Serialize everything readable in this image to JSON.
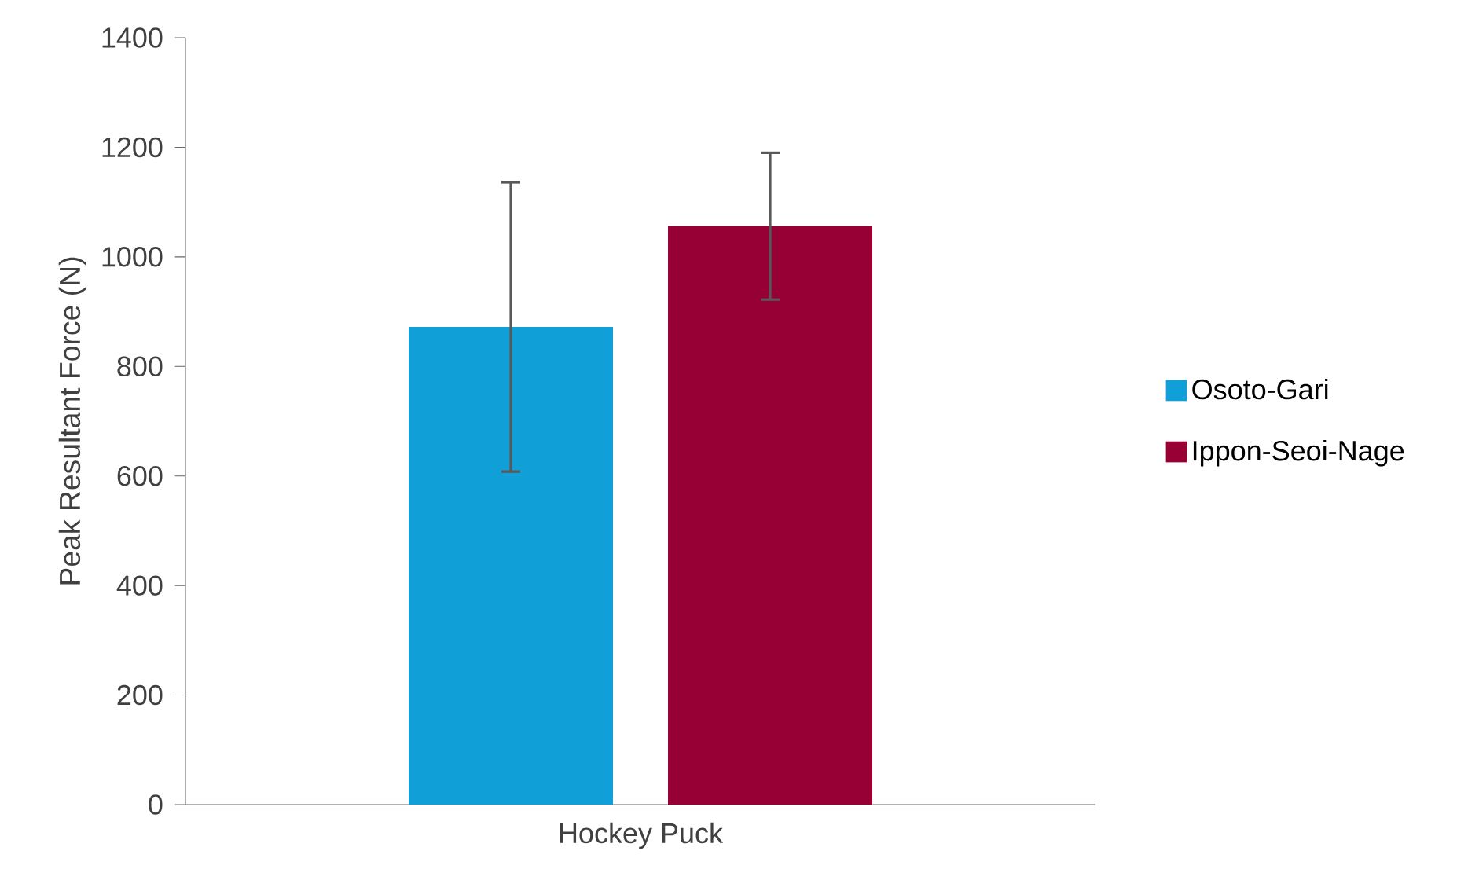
{
  "chart_data": {
    "type": "bar",
    "ylabel": "Peak Resultant Force (N)",
    "categories": [
      "Hockey Puck"
    ],
    "series": [
      {
        "name": "Osoto-Gari",
        "color": "#109fd6",
        "values": [
          872
        ],
        "errors": [
          264
        ]
      },
      {
        "name": "Ippon-Seoi-Nage",
        "color": "#970034",
        "values": [
          1056
        ],
        "errors": [
          134
        ]
      }
    ],
    "ylim": [
      0,
      1400
    ],
    "yticks": [
      0,
      200,
      400,
      600,
      800,
      1000,
      1200,
      1400
    ],
    "legend": "right"
  }
}
